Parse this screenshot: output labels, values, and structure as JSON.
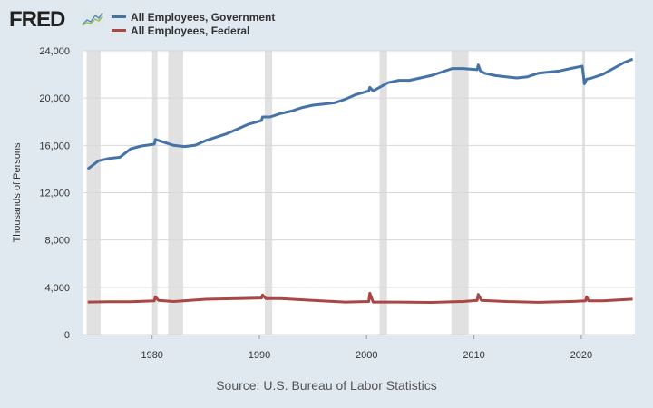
{
  "logo": "FRED",
  "colors": {
    "background": "#e1e9f0",
    "government": "#4572a7",
    "federal": "#aa4643",
    "recession": "#e1e1e1"
  },
  "source": "Source: U.S. Bureau of Labor Statistics",
  "chart_data": {
    "type": "line",
    "title": "",
    "xlabel": "",
    "ylabel": "Thousands of Persons",
    "xlim": [
      1973.6,
      2025.0
    ],
    "ylim": [
      0,
      24000
    ],
    "xticks": [
      1980,
      1990,
      2000,
      2010,
      2020
    ],
    "yticks": [
      0,
      4000,
      8000,
      12000,
      16000,
      20000,
      24000
    ],
    "ytick_labels": [
      "0",
      "4,000",
      "8,000",
      "12,000",
      "16,000",
      "20,000",
      "24,000"
    ],
    "grid": true,
    "legend": "top-left",
    "recessions": [
      [
        1973.9,
        1975.2
      ],
      [
        1980.0,
        1980.5
      ],
      [
        1981.5,
        1982.9
      ],
      [
        1990.5,
        1991.2
      ],
      [
        2001.2,
        2001.9
      ],
      [
        2007.9,
        2009.5
      ],
      [
        2020.1,
        2020.3
      ]
    ],
    "series": [
      {
        "name": "All Employees, Government",
        "color": "#4572a7",
        "x": [
          1974,
          1975,
          1976,
          1977,
          1978,
          1979,
          1980.2,
          1980.3,
          1981,
          1982,
          1983,
          1984,
          1985,
          1986,
          1987,
          1988,
          1989,
          1990.2,
          1990.3,
          1991,
          1992,
          1993,
          1994,
          1995,
          1996,
          1997,
          1998,
          1999,
          2000.2,
          2000.3,
          2000.6,
          2001,
          2002,
          2003,
          2004,
          2005,
          2006,
          2007,
          2008,
          2009,
          2010.3,
          2010.4,
          2010.6,
          2011,
          2012,
          2013,
          2014,
          2015,
          2016,
          2017,
          2018,
          2019,
          2020.1,
          2020.3,
          2020.5,
          2021,
          2022,
          2023,
          2024,
          2024.8
        ],
        "values": [
          14000,
          14700,
          14900,
          15000,
          15700,
          15950,
          16100,
          16500,
          16300,
          16000,
          15900,
          16000,
          16400,
          16700,
          17000,
          17400,
          17800,
          18100,
          18400,
          18400,
          18700,
          18900,
          19200,
          19400,
          19500,
          19600,
          19900,
          20300,
          20600,
          20900,
          20600,
          20800,
          21300,
          21500,
          21500,
          21700,
          21900,
          22200,
          22500,
          22500,
          22400,
          22800,
          22300,
          22100,
          21900,
          21800,
          21700,
          21800,
          22100,
          22200,
          22300,
          22500,
          22700,
          21200,
          21600,
          21700,
          22000,
          22500,
          23000,
          23300
        ]
      },
      {
        "name": "All Employees, Federal",
        "color": "#aa4643",
        "x": [
          1974,
          1976,
          1978,
          1980.2,
          1980.3,
          1980.6,
          1982,
          1985,
          1988,
          1990.2,
          1990.3,
          1990.6,
          1992,
          1995,
          1998,
          2000.2,
          2000.3,
          2000.6,
          2003,
          2006,
          2009,
          2010.3,
          2010.4,
          2010.7,
          2013,
          2016,
          2019,
          2020.4,
          2020.5,
          2020.7,
          2022,
          2024.8
        ],
        "values": [
          2750,
          2780,
          2780,
          2850,
          3200,
          2900,
          2800,
          2990,
          3050,
          3100,
          3350,
          3050,
          3050,
          2900,
          2750,
          2800,
          3500,
          2750,
          2750,
          2720,
          2800,
          2900,
          3400,
          2900,
          2800,
          2730,
          2800,
          2850,
          3200,
          2850,
          2850,
          3000
        ]
      }
    ]
  }
}
